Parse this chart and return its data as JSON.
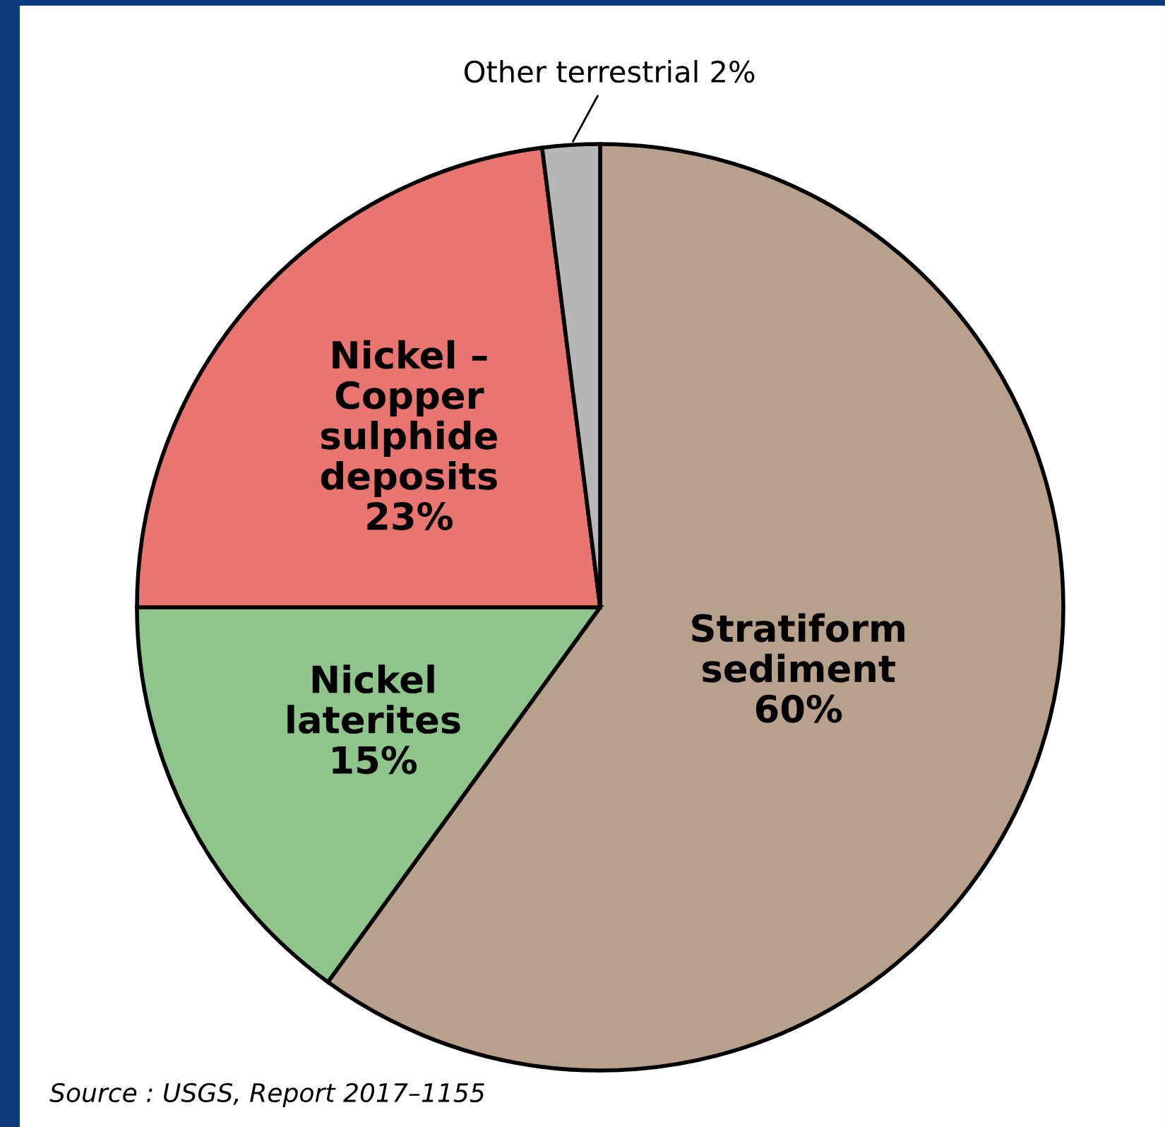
{
  "chart_data": {
    "type": "pie",
    "categories": [
      "Stratiform\nsediment",
      "Nickel\nlaterites",
      "Nickel –\nCopper\nsulphide\ndeposits",
      "Other terrestrial"
    ],
    "values": [
      60,
      15,
      23,
      2
    ],
    "colors": [
      "#b8a18c",
      "#8fc58c",
      "#e8756f",
      "#b7b7b7"
    ],
    "legend": false,
    "value_labels": [
      "60%",
      "15%",
      "23%",
      "2%"
    ],
    "annotations": [
      "Source : USGS, Report 2017–1155"
    ]
  }
}
